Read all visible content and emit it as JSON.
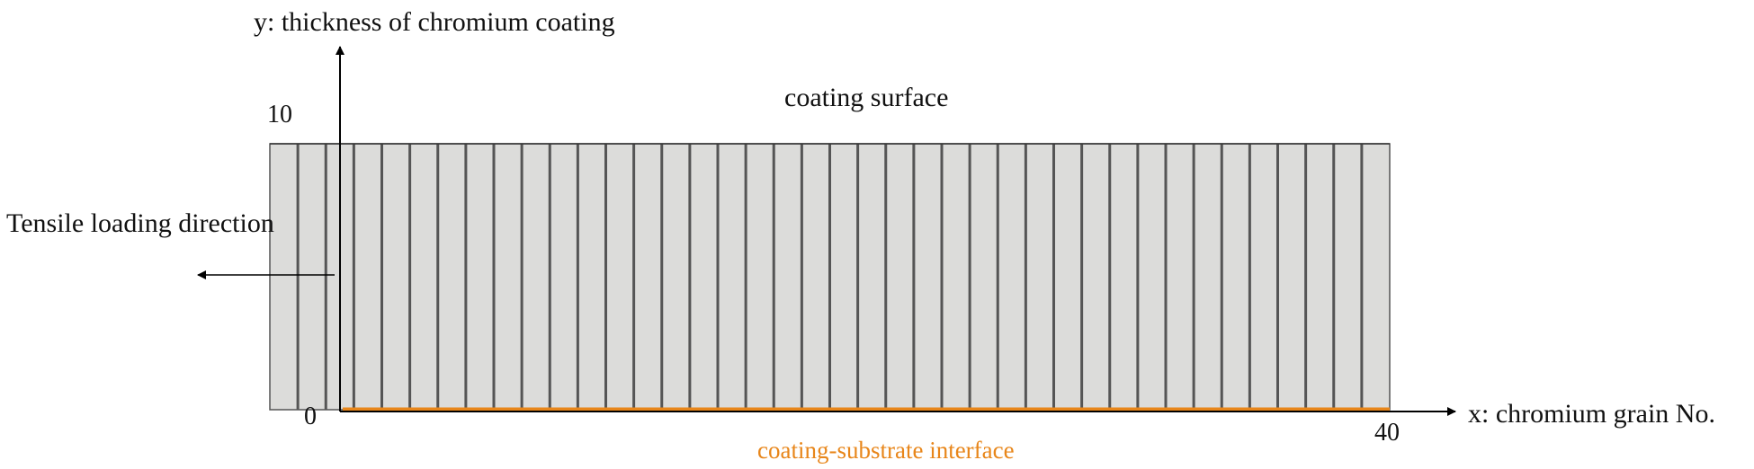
{
  "y_axis": {
    "label": "y: thickness of chromium coating",
    "tick_top": "10",
    "tick_bottom": "0"
  },
  "x_axis": {
    "label": "x:  chromium grain No.",
    "tick_end": "40"
  },
  "surface_label": "coating surface",
  "interface_label": "coating-substrate interface",
  "load_label": "Tensile loading direction",
  "grains": {
    "count": 40
  },
  "colors": {
    "grain_fill": "#dcdcda",
    "grain_boundary": "#555555",
    "interface": "#e8861a",
    "axis": "#000000",
    "interface_text": "#e8861a"
  }
}
